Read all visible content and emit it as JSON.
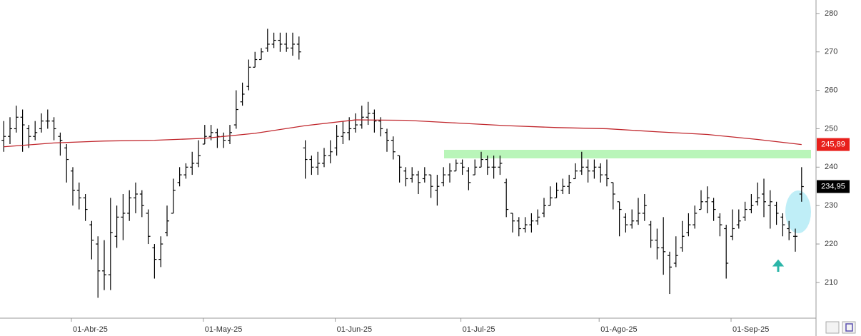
{
  "chart_data": {
    "type": "ohlc",
    "categories": [
      null,
      null,
      null,
      null,
      null,
      null,
      null,
      null,
      null,
      null,
      null,
      "01-Abr-25",
      null,
      null,
      null,
      null,
      null,
      null,
      null,
      null,
      null,
      null,
      null,
      null,
      null,
      null,
      null,
      null,
      null,
      null,
      null,
      null,
      "01-May-25",
      null,
      null,
      null,
      null,
      null,
      null,
      null,
      null,
      null,
      null,
      null,
      null,
      null,
      null,
      null,
      null,
      null,
      null,
      null,
      null,
      "01-Jun-25",
      null,
      null,
      null,
      null,
      null,
      null,
      null,
      null,
      null,
      null,
      null,
      null,
      null,
      null,
      null,
      null,
      null,
      null,
      null,
      "01-Jul-25",
      null,
      null,
      null,
      null,
      null,
      null,
      null,
      null,
      null,
      null,
      null,
      null,
      null,
      null,
      null,
      null,
      null,
      null,
      null,
      null,
      null,
      "01-Ago-25",
      null,
      null,
      null,
      null,
      null,
      null,
      null,
      null,
      null,
      null,
      null,
      null,
      null,
      null,
      null,
      null,
      null,
      null,
      null,
      null,
      "01-Sep-25",
      null,
      null,
      null,
      null,
      null,
      null,
      null,
      null,
      null,
      null,
      null
    ],
    "open": [
      247,
      248,
      250,
      253,
      250,
      248,
      250,
      252,
      252,
      248,
      245,
      239,
      234,
      232,
      225,
      220,
      213,
      212,
      222,
      227,
      228,
      232,
      233,
      228,
      219,
      216,
      223,
      228,
      236,
      238,
      240,
      241,
      246,
      248,
      249,
      248,
      247,
      251,
      257,
      261,
      266,
      268,
      271,
      272,
      273,
      272,
      271,
      272,
      245,
      242,
      240,
      241,
      243,
      245,
      248,
      249,
      250,
      251,
      253,
      254,
      252,
      249,
      247,
      243,
      239,
      237,
      238,
      237,
      238,
      234,
      236,
      238,
      239,
      241,
      239,
      238,
      240,
      242,
      240,
      240,
      236,
      228,
      226,
      224,
      225,
      226,
      228,
      230,
      232,
      234,
      235,
      237,
      239,
      240,
      239,
      240,
      238,
      236,
      231,
      227,
      225,
      226,
      228,
      225,
      221,
      219,
      217,
      215,
      219,
      223,
      225,
      229,
      231,
      231,
      227,
      224,
      222,
      225,
      227,
      229,
      231,
      233,
      230,
      230,
      227,
      224,
      222,
      233
    ],
    "high": [
      252,
      253,
      256,
      255,
      251,
      252,
      254,
      255,
      253,
      249,
      246,
      240,
      236,
      233,
      226,
      222,
      221,
      232,
      230,
      233,
      234,
      236,
      234,
      229,
      220,
      222,
      230,
      237,
      240,
      241,
      244,
      247,
      251,
      251,
      250,
      249,
      251,
      260,
      262,
      268,
      270,
      271,
      276,
      275,
      275,
      275,
      275,
      274,
      247,
      243,
      244,
      245,
      247,
      251,
      252,
      253,
      254,
      256,
      257,
      255,
      253,
      250,
      248,
      243,
      240,
      240,
      239,
      240,
      238,
      238,
      240,
      241,
      242,
      242,
      240,
      242,
      244,
      243,
      243,
      243,
      237,
      228,
      227,
      227,
      228,
      229,
      232,
      235,
      236,
      237,
      238,
      241,
      244,
      242,
      242,
      241,
      242,
      236,
      231,
      228,
      229,
      232,
      233,
      226,
      224,
      227,
      218,
      222,
      226,
      228,
      230,
      234,
      235,
      232,
      228,
      225,
      229,
      229,
      231,
      233,
      236,
      237,
      234,
      231,
      228,
      226,
      224,
      240
    ],
    "low": [
      244,
      246,
      249,
      244,
      245,
      247,
      249,
      250,
      247,
      243,
      236,
      230,
      229,
      226,
      216,
      206,
      208,
      208,
      219,
      221,
      226,
      228,
      227,
      220,
      211,
      214,
      222,
      228,
      235,
      237,
      238,
      240,
      246,
      247,
      245,
      245,
      246,
      250,
      256,
      260,
      266,
      268,
      270,
      271,
      270,
      270,
      269,
      268,
      237,
      238,
      238,
      240,
      241,
      243,
      246,
      247,
      249,
      250,
      251,
      249,
      248,
      244,
      242,
      236,
      235,
      236,
      233,
      236,
      232,
      230,
      235,
      236,
      239,
      238,
      234,
      238,
      240,
      238,
      237,
      238,
      227,
      223,
      222,
      223,
      223,
      225,
      227,
      230,
      232,
      233,
      233,
      237,
      238,
      236,
      237,
      236,
      235,
      229,
      222,
      223,
      224,
      225,
      226,
      219,
      216,
      212,
      207,
      214,
      218,
      222,
      224,
      229,
      228,
      226,
      222,
      211,
      221,
      224,
      226,
      228,
      230,
      227,
      224,
      225,
      222,
      221,
      218,
      231
    ],
    "close": [
      248,
      250,
      253,
      251,
      248,
      249,
      252,
      252,
      250,
      247,
      242,
      234,
      232,
      229,
      221,
      213,
      212,
      223,
      227,
      228,
      232,
      233,
      230,
      222,
      216,
      220,
      226,
      234,
      238,
      240,
      241,
      243,
      248,
      249,
      248,
      247,
      249,
      255,
      259,
      266,
      268,
      270,
      272,
      273,
      272,
      271,
      272,
      270,
      242,
      240,
      241,
      243,
      244,
      248,
      249,
      250,
      251,
      253,
      254,
      252,
      250,
      247,
      244,
      240,
      237,
      238,
      236,
      238,
      235,
      235,
      238,
      239,
      241,
      240,
      236,
      240,
      242,
      240,
      240,
      241,
      229,
      226,
      224,
      225,
      226,
      227,
      230,
      232,
      234,
      235,
      236,
      239,
      240,
      239,
      240,
      238,
      237,
      233,
      229,
      225,
      226,
      228,
      230,
      221,
      219,
      218,
      214,
      217,
      222,
      225,
      228,
      231,
      232,
      229,
      225,
      215,
      224,
      226,
      229,
      230,
      232,
      231,
      231,
      228,
      225,
      223,
      222,
      234.95
    ],
    "color": "#000000",
    "ma": {
      "color": "#c0262c",
      "x": [
        0,
        8,
        16,
        24,
        32,
        40,
        48,
        56,
        64,
        72,
        80,
        88,
        96,
        104,
        112,
        120,
        127
      ],
      "values": [
        245.3,
        246.3,
        246.8,
        247.0,
        247.5,
        248.8,
        250.8,
        252.3,
        252.2,
        251.5,
        250.8,
        250.3,
        250.0,
        249.2,
        248.5,
        247.2,
        245.89
      ]
    },
    "price_tags": [
      {
        "value": 245.89,
        "label": "245,89",
        "color": "#e8201c"
      },
      {
        "value": 234.95,
        "label": "234,95",
        "color": "#000000"
      }
    ],
    "ylim": [
      200.7,
      283.5
    ],
    "yticks": [
      210,
      220,
      230,
      240,
      250,
      260,
      270,
      280
    ]
  }
}
